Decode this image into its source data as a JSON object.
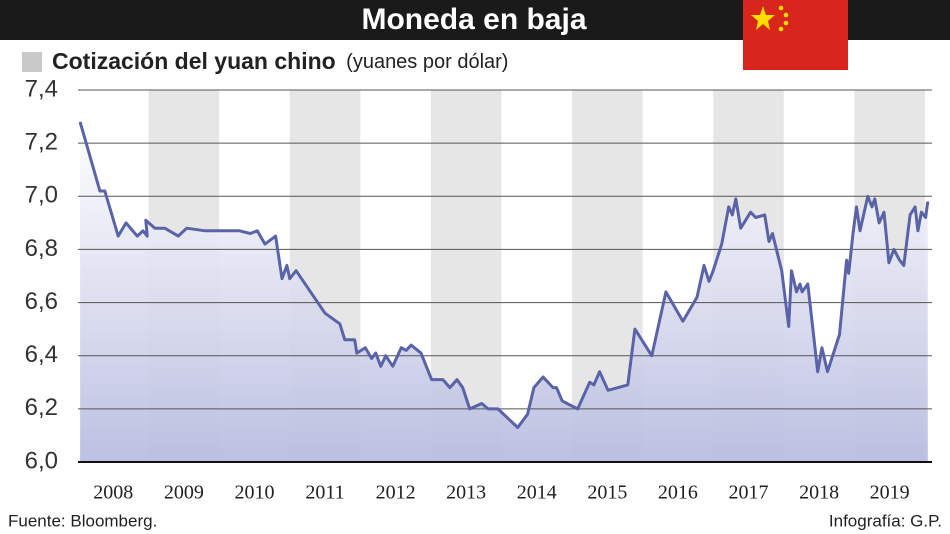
{
  "chart_data": {
    "type": "line",
    "title": "Moneda en baja",
    "subtitle": "Cotización del yuan chino",
    "subtitle_note": "(yuanes por dólar)",
    "source": "Fuente: Bloomberg.",
    "credit": "Infografía: G.P.",
    "color": "#5a63a8",
    "grid": true,
    "xlim": [
      2008,
      2020.1
    ],
    "xticks": [
      2008,
      2009,
      2010,
      2011,
      2012,
      2013,
      2014,
      2015,
      2016,
      2017,
      2018,
      2019
    ],
    "ylim": [
      6.0,
      7.4
    ],
    "yticks": [
      {
        "value": 6.0,
        "label": "6,0"
      },
      {
        "value": 6.2,
        "label": "6,2"
      },
      {
        "value": 6.4,
        "label": "6,4"
      },
      {
        "value": 6.6,
        "label": "6,6"
      },
      {
        "value": 6.8,
        "label": "6,8"
      },
      {
        "value": 7.0,
        "label": "7,0"
      },
      {
        "value": 7.2,
        "label": "7,2"
      },
      {
        "value": 7.4,
        "label": "7,4"
      }
    ],
    "x": [
      2008.03,
      2008.31,
      2008.38,
      2008.57,
      2008.68,
      2008.84,
      2008.92,
      2008.98,
      2008.96,
      2009.09,
      2009.23,
      2009.42,
      2009.54,
      2009.8,
      2010.29,
      2010.44,
      2010.54,
      2010.65,
      2010.8,
      2010.89,
      2010.96,
      2011.0,
      2011.09,
      2011.5,
      2011.71,
      2011.78,
      2011.92,
      2011.95,
      2012.07,
      2012.16,
      2012.22,
      2012.29,
      2012.36,
      2012.46,
      2012.58,
      2012.65,
      2012.72,
      2012.86,
      2013.01,
      2013.17,
      2013.27,
      2013.37,
      2013.45,
      2013.55,
      2013.72,
      2013.81,
      2013.95,
      2014.23,
      2014.37,
      2014.46,
      2014.59,
      2014.73,
      2014.78,
      2014.86,
      2015.08,
      2015.25,
      2015.31,
      2015.39,
      2015.51,
      2015.79,
      2015.89,
      2016.13,
      2016.33,
      2016.57,
      2016.77,
      2016.87,
      2016.94,
      2017.0,
      2017.12,
      2017.22,
      2017.27,
      2017.32,
      2017.39,
      2017.53,
      2017.6,
      2017.73,
      2017.79,
      2017.84,
      2017.97,
      2018.07,
      2018.11,
      2018.18,
      2018.23,
      2018.26,
      2018.34,
      2018.48,
      2018.54,
      2018.62,
      2018.79,
      2018.89,
      2018.92,
      2018.98,
      2019.03,
      2019.08,
      2019.19,
      2019.25,
      2019.29,
      2019.35,
      2019.42,
      2019.49,
      2019.56,
      2019.64,
      2019.7,
      2019.79,
      2019.86,
      2019.9,
      2019.95,
      2020.01,
      2020.04
    ],
    "values": [
      7.28,
      7.02,
      7.02,
      6.85,
      6.9,
      6.85,
      6.87,
      6.85,
      6.91,
      6.88,
      6.88,
      6.85,
      6.88,
      6.87,
      6.87,
      6.86,
      6.87,
      6.82,
      6.85,
      6.69,
      6.74,
      6.69,
      6.72,
      6.56,
      6.52,
      6.46,
      6.46,
      6.41,
      6.43,
      6.39,
      6.41,
      6.36,
      6.4,
      6.36,
      6.43,
      6.42,
      6.44,
      6.41,
      6.31,
      6.31,
      6.28,
      6.31,
      6.28,
      6.2,
      6.22,
      6.2,
      6.2,
      6.13,
      6.18,
      6.28,
      6.32,
      6.28,
      6.28,
      6.23,
      6.2,
      6.3,
      6.29,
      6.34,
      6.27,
      6.29,
      6.5,
      6.4,
      6.64,
      6.53,
      6.62,
      6.74,
      6.68,
      6.72,
      6.82,
      6.96,
      6.93,
      6.99,
      6.88,
      6.94,
      6.92,
      6.93,
      6.83,
      6.86,
      6.72,
      6.51,
      6.72,
      6.64,
      6.67,
      6.64,
      6.67,
      6.34,
      6.43,
      6.34,
      6.48,
      6.76,
      6.71,
      6.86,
      6.96,
      6.87,
      7.0,
      6.96,
      6.99,
      6.9,
      6.94,
      6.75,
      6.8,
      6.76,
      6.74,
      6.93,
      6.96,
      6.87,
      6.94,
      6.92,
      6.98
    ]
  }
}
